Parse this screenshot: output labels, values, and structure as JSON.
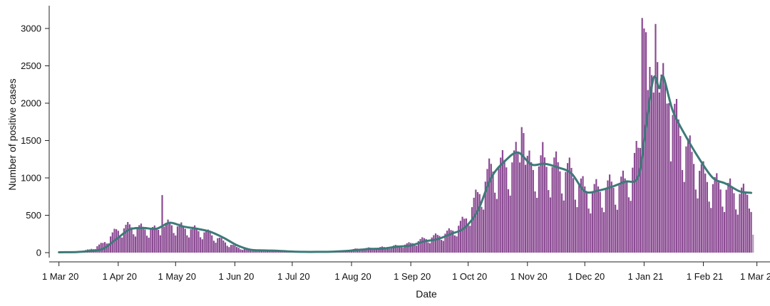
{
  "chart_data": {
    "type": "bar",
    "xlabel": "Date",
    "ylabel": "Number of positive cases",
    "ylim": [
      0,
      3200
    ],
    "grid": false,
    "x_tick_labels": [
      "1 Mar 20",
      "1 Apr 20",
      "1 May 20",
      "1 Jun 20",
      "1 Jul 20",
      "1 Aug 20",
      "1 Sep 20",
      "1 Oct 20",
      "1 Nov 20",
      "1 Dec 20",
      "1 Jan 21",
      "1 Feb 21",
      "1 Mar 21"
    ],
    "y_tick_labels": [
      "0",
      "500",
      "1000",
      "1500",
      "2000",
      "2500",
      "3000"
    ],
    "y_tick_values": [
      0,
      500,
      1000,
      1500,
      2000,
      2500,
      3000
    ],
    "x_range": [
      "2020-02-29",
      "2021-03-03"
    ],
    "colors": {
      "bars": "#8b4a93",
      "bars_provisional": "#b49bbb",
      "average_line": "#3d7a78"
    },
    "series": [
      {
        "kind": "bar",
        "description": "daily counts, anchor points (dates interpolated)",
        "points": [
          [
            "2020-03-01",
            2
          ],
          [
            "2020-03-10",
            8
          ],
          [
            "2020-03-17",
            40
          ],
          [
            "2020-03-24",
            120
          ],
          [
            "2020-03-31",
            290
          ],
          [
            "2020-04-07",
            350
          ],
          [
            "2020-04-14",
            320
          ],
          [
            "2020-04-21",
            300
          ],
          [
            "2020-04-28",
            380
          ],
          [
            "2020-05-05",
            330
          ],
          [
            "2020-05-12",
            300
          ],
          [
            "2020-05-19",
            250
          ],
          [
            "2020-05-26",
            150
          ],
          [
            "2020-06-02",
            70
          ],
          [
            "2020-06-09",
            40
          ],
          [
            "2020-06-16",
            30
          ],
          [
            "2020-06-23",
            25
          ],
          [
            "2020-06-30",
            15
          ],
          [
            "2020-07-07",
            10
          ],
          [
            "2020-07-14",
            12
          ],
          [
            "2020-07-21",
            15
          ],
          [
            "2020-07-28",
            25
          ],
          [
            "2020-08-04",
            50
          ],
          [
            "2020-08-11",
            60
          ],
          [
            "2020-08-18",
            70
          ],
          [
            "2020-08-25",
            90
          ],
          [
            "2020-09-01",
            120
          ],
          [
            "2020-09-08",
            180
          ],
          [
            "2020-09-15",
            220
          ],
          [
            "2020-09-22",
            280
          ],
          [
            "2020-09-29",
            420
          ],
          [
            "2020-10-06",
            750
          ],
          [
            "2020-10-13",
            1100
          ],
          [
            "2020-10-20",
            1150
          ],
          [
            "2020-10-27",
            1250
          ],
          [
            "2020-11-03",
            1120
          ],
          [
            "2020-11-10",
            1180
          ],
          [
            "2020-11-17",
            1120
          ],
          [
            "2020-11-24",
            1050
          ],
          [
            "2020-12-01",
            820
          ],
          [
            "2020-12-08",
            820
          ],
          [
            "2020-12-15",
            880
          ],
          [
            "2020-12-22",
            920
          ],
          [
            "2020-12-29",
            1300
          ],
          [
            "2021-01-05",
            2200
          ],
          [
            "2021-01-12",
            2100
          ],
          [
            "2021-01-19",
            1650
          ],
          [
            "2021-01-26",
            1250
          ],
          [
            "2021-02-02",
            980
          ],
          [
            "2021-02-09",
            870
          ],
          [
            "2021-02-16",
            820
          ],
          [
            "2021-02-23",
            760
          ],
          [
            "2021-02-26",
            850
          ]
        ],
        "spikes": [
          [
            "2020-04-24",
            770
          ],
          [
            "2020-10-29",
            1680
          ],
          [
            "2020-10-30",
            1600
          ],
          [
            "2020-11-09",
            1480
          ],
          [
            "2020-12-31",
            3140
          ],
          [
            "2021-01-01",
            3000
          ],
          [
            "2021-01-02",
            2950
          ],
          [
            "2021-01-07",
            3060
          ],
          [
            "2021-01-08",
            2550
          ],
          [
            "2021-01-12",
            2300
          ],
          [
            "2021-01-14",
            2000
          ]
        ],
        "provisional": [
          [
            "2021-02-27",
            240
          ]
        ]
      },
      {
        "kind": "line",
        "description": "rolling average",
        "points": [
          [
            "2020-03-01",
            5
          ],
          [
            "2020-03-10",
            8
          ],
          [
            "2020-03-17",
            20
          ],
          [
            "2020-03-24",
            50
          ],
          [
            "2020-03-31",
            180
          ],
          [
            "2020-04-07",
            310
          ],
          [
            "2020-04-14",
            330
          ],
          [
            "2020-04-21",
            320
          ],
          [
            "2020-04-28",
            400
          ],
          [
            "2020-05-05",
            350
          ],
          [
            "2020-05-12",
            320
          ],
          [
            "2020-05-19",
            280
          ],
          [
            "2020-05-26",
            200
          ],
          [
            "2020-06-02",
            100
          ],
          [
            "2020-06-09",
            40
          ],
          [
            "2020-06-16",
            30
          ],
          [
            "2020-06-23",
            25
          ],
          [
            "2020-06-30",
            15
          ],
          [
            "2020-07-07",
            10
          ],
          [
            "2020-07-14",
            10
          ],
          [
            "2020-07-21",
            12
          ],
          [
            "2020-07-28",
            20
          ],
          [
            "2020-08-04",
            35
          ],
          [
            "2020-08-11",
            50
          ],
          [
            "2020-08-18",
            55
          ],
          [
            "2020-08-25",
            80
          ],
          [
            "2020-09-01",
            95
          ],
          [
            "2020-09-08",
            150
          ],
          [
            "2020-09-15",
            180
          ],
          [
            "2020-09-22",
            250
          ],
          [
            "2020-09-29",
            330
          ],
          [
            "2020-10-06",
            560
          ],
          [
            "2020-10-13",
            1000
          ],
          [
            "2020-10-20",
            1220
          ],
          [
            "2020-10-27",
            1340
          ],
          [
            "2020-11-03",
            1180
          ],
          [
            "2020-11-10",
            1190
          ],
          [
            "2020-11-17",
            1140
          ],
          [
            "2020-11-24",
            1060
          ],
          [
            "2020-12-01",
            820
          ],
          [
            "2020-12-08",
            830
          ],
          [
            "2020-12-15",
            880
          ],
          [
            "2020-12-22",
            950
          ],
          [
            "2020-12-29",
            1020
          ],
          [
            "2021-01-02",
            1700
          ],
          [
            "2021-01-06",
            2340
          ],
          [
            "2021-01-09",
            2200
          ],
          [
            "2021-01-11",
            2360
          ],
          [
            "2021-01-16",
            1900
          ],
          [
            "2021-01-23",
            1550
          ],
          [
            "2021-01-30",
            1250
          ],
          [
            "2021-02-06",
            1000
          ],
          [
            "2021-02-13",
            920
          ],
          [
            "2021-02-20",
            820
          ],
          [
            "2021-02-26",
            800
          ]
        ]
      }
    ]
  }
}
